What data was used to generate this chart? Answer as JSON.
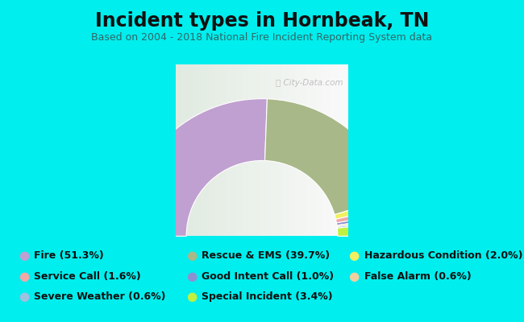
{
  "title": "Incident types in Hornbeak, TN",
  "subtitle": "Based on 2004 - 2018 National Fire Incident Reporting System data",
  "background_color": "#00EEEE",
  "chart_bg_top_color": "#f0f5e8",
  "chart_bg_bottom_color": "#e0ede8",
  "watermark": "City-Data.com",
  "slices": [
    {
      "label": "Fire",
      "pct": 51.3,
      "color": "#c0a0d0"
    },
    {
      "label": "Rescue & EMS",
      "pct": 39.7,
      "color": "#a8b888"
    },
    {
      "label": "Hazardous Condition",
      "pct": 2.0,
      "color": "#f0f060"
    },
    {
      "label": "Service Call",
      "pct": 1.6,
      "color": "#f0a8a8"
    },
    {
      "label": "Good Intent Call",
      "pct": 1.0,
      "color": "#9090d0"
    },
    {
      "label": "False Alarm",
      "pct": 0.6,
      "color": "#f0d0a0"
    },
    {
      "label": "Severe Weather",
      "pct": 0.6,
      "color": "#a0c0e0"
    },
    {
      "label": "Special Incident",
      "pct": 3.4,
      "color": "#c0f040"
    }
  ],
  "legend_items": [
    {
      "label": "Fire (51.3%)",
      "color": "#c0a0d0"
    },
    {
      "label": "Service Call (1.6%)",
      "color": "#f0a8a8"
    },
    {
      "label": "Severe Weather (0.6%)",
      "color": "#a0c0e0"
    },
    {
      "label": "Rescue & EMS (39.7%)",
      "color": "#a8b888"
    },
    {
      "label": "Good Intent Call (1.0%)",
      "color": "#9090d0"
    },
    {
      "label": "Special Incident (3.4%)",
      "color": "#c0f040"
    },
    {
      "label": "Hazardous Condition (2.0%)",
      "color": "#f0f060"
    },
    {
      "label": "False Alarm (0.6%)",
      "color": "#f0d0a0"
    }
  ],
  "title_fontsize": 17,
  "subtitle_fontsize": 9,
  "legend_fontsize": 9
}
